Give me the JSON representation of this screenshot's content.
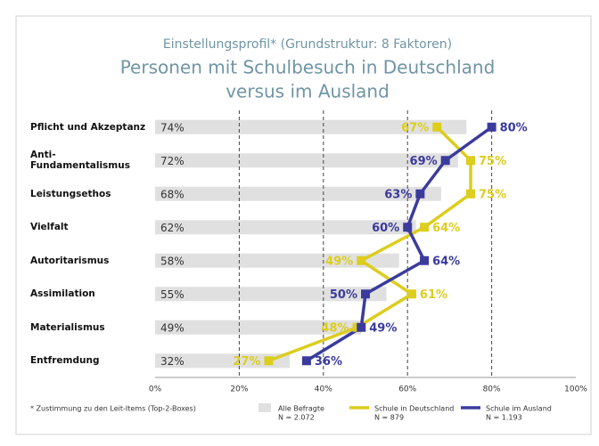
{
  "chart_data": {
    "type": "bar",
    "subtitle": "Einstellungsprofil* (Grundstruktur: 8 Faktoren)",
    "title": [
      "Personen mit Schulbesuch in Deutschland",
      "versus im Ausland"
    ],
    "categories": [
      "Pflicht und Akzeptanz",
      "Anti-Fundamentalismus",
      "Leistungsethos",
      "Vielfalt",
      "Autoritarismus",
      "Assimilation",
      "Materialismus",
      "Entfremdung"
    ],
    "series": [
      {
        "name": "Alle Befragte",
        "n": "N = 2.072",
        "type": "bar",
        "color": "#e0e0e0",
        "values": [
          74,
          72,
          68,
          62,
          58,
          55,
          49,
          32
        ],
        "value_labels": [
          "74%",
          "72%",
          "68%",
          "62%",
          "58%",
          "55%",
          "49%",
          "32%"
        ]
      },
      {
        "name": "Schule in Deutschland",
        "n": "N = 879",
        "type": "line",
        "color": "#dccd1e",
        "values": [
          67,
          75,
          75,
          64,
          49,
          61,
          48,
          27
        ],
        "value_labels": [
          "67%",
          "75%",
          "75%",
          "64%",
          "49%",
          "61%",
          "48%",
          "27%"
        ]
      },
      {
        "name": "Schule im Ausland",
        "n": "N = 1.193",
        "type": "line",
        "color": "#3b3b9e",
        "values": [
          80,
          69,
          63,
          60,
          64,
          50,
          49,
          36
        ],
        "value_labels": [
          "80%",
          "69%",
          "63%",
          "60%",
          "64%",
          "50%",
          "49%",
          "36%"
        ]
      }
    ],
    "xlim": [
      0,
      100
    ],
    "xticks": [
      {
        "value": 0,
        "label": "0%"
      },
      {
        "value": 20,
        "label": "20%"
      },
      {
        "value": 40,
        "label": "40%"
      },
      {
        "value": 60,
        "label": "60%"
      },
      {
        "value": 80,
        "label": "80%"
      },
      {
        "value": 100,
        "label": "100%"
      }
    ],
    "grid": true,
    "footnote": "* Zustimmung zu den Leit-Items (Top-2-Boxes)"
  }
}
